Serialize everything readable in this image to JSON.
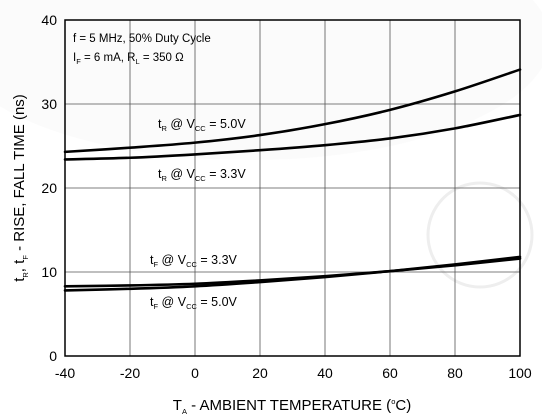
{
  "chart_data": {
    "type": "line",
    "title": "",
    "xlabel": {
      "main": "T",
      "sub": "A",
      "rest": " - AMBIENT TEMPERATURE (",
      "sup": "o",
      "end": "C)"
    },
    "ylabel": {
      "p1": "t",
      "s1": "R",
      "p2": ", t",
      "s2": "F",
      "p3": " - RISE, FALL TIME (ns)"
    },
    "xlim": [
      -40,
      100
    ],
    "ylim": [
      0,
      40
    ],
    "xticks": [
      -40,
      -20,
      0,
      20,
      40,
      60,
      80,
      100
    ],
    "yticks": [
      0,
      10,
      20,
      30,
      40
    ],
    "grid": true,
    "conditions": {
      "line1": "f = 5 MHz, 50% Duty Cycle",
      "line2": {
        "a": "I",
        "a_sub": "F",
        "b": " = 6 mA, R",
        "b_sub": "L",
        "c": " = 350 Ω"
      }
    },
    "series": [
      {
        "name": "tR @ VCC = 5.0V",
        "x": [
          -40,
          -20,
          0,
          20,
          40,
          60,
          80,
          100
        ],
        "values": [
          24.3,
          24.8,
          25.4,
          26.3,
          27.6,
          29.3,
          31.5,
          34.1
        ]
      },
      {
        "name": "tR @ VCC = 3.3V",
        "x": [
          -40,
          -20,
          0,
          20,
          40,
          60,
          80,
          100
        ],
        "values": [
          23.4,
          23.6,
          24.0,
          24.5,
          25.1,
          25.9,
          27.1,
          28.7
        ]
      },
      {
        "name": "tF @ VCC = 3.3V",
        "x": [
          -40,
          -20,
          0,
          20,
          40,
          60,
          80,
          100
        ],
        "values": [
          8.3,
          8.4,
          8.6,
          9.0,
          9.5,
          10.1,
          10.8,
          11.6
        ]
      },
      {
        "name": "tF @ VCC = 5.0V",
        "x": [
          -40,
          -20,
          0,
          20,
          40,
          60,
          80,
          100
        ],
        "values": [
          7.8,
          8.0,
          8.3,
          8.8,
          9.4,
          10.1,
          10.9,
          11.8
        ]
      }
    ],
    "annotations": [
      {
        "p": "t",
        "s": "R",
        "mid": " @ V",
        "s2": "CC",
        "end": " = 5.0V"
      },
      {
        "p": "t",
        "s": "R",
        "mid": " @ V",
        "s2": "CC",
        "end": " = 3.3V"
      },
      {
        "p": "t",
        "s": "F",
        "mid": " @ V",
        "s2": "CC",
        "end": " = 3.3V"
      },
      {
        "p": "t",
        "s": "F",
        "mid": " @ V",
        "s2": "CC",
        "end": " = 5.0V"
      }
    ]
  }
}
